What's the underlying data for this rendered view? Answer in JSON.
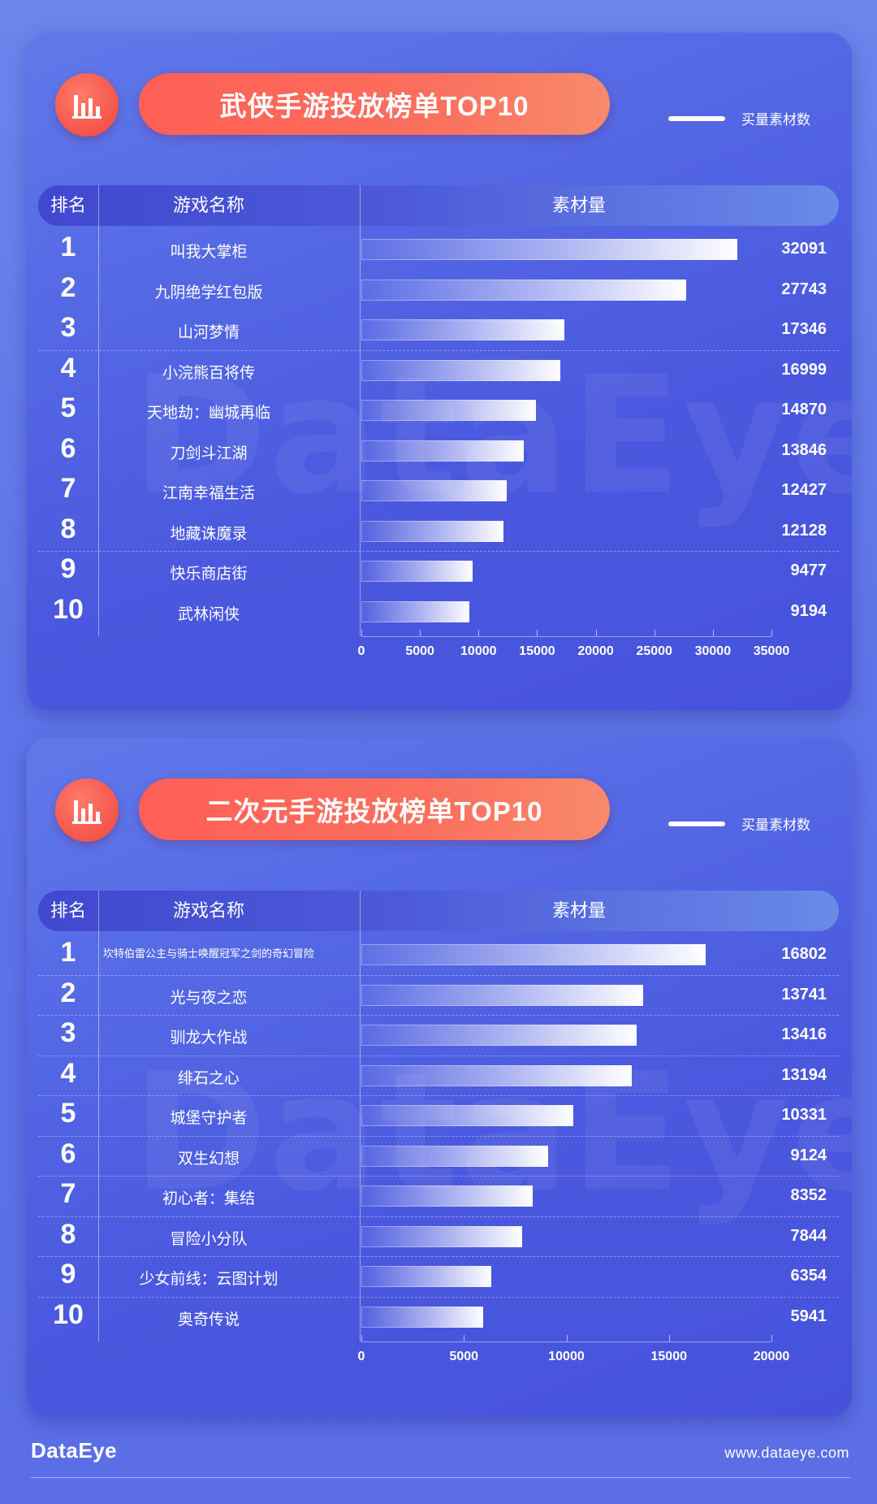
{
  "legend_label": "买量素材数",
  "header": {
    "rank": "排名",
    "name": "游戏名称",
    "value": "素材量"
  },
  "watermark": "DataEye",
  "chart_data": [
    {
      "type": "bar",
      "orientation": "horizontal",
      "title": "武侠手游投放榜单TOP10",
      "ranks": [
        "1",
        "2",
        "3",
        "4",
        "5",
        "6",
        "7",
        "8",
        "9",
        "10"
      ],
      "categories": [
        "叫我大掌柜",
        "九阴绝学红包版",
        "山河梦情",
        "小浣熊百将传",
        "天地劫：幽城再临",
        "刀剑斗江湖",
        "江南幸福生活",
        "地藏诛魔录",
        "快乐商店街",
        "武林闲侠"
      ],
      "values": [
        32091,
        27743,
        17346,
        16999,
        14870,
        13846,
        12427,
        12128,
        9477,
        9194
      ],
      "series": [
        {
          "name": "买量素材数",
          "values": [
            32091,
            27743,
            17346,
            16999,
            14870,
            13846,
            12427,
            12128,
            9477,
            9194
          ]
        }
      ],
      "xlim": [
        0,
        35000
      ],
      "ticks": [
        0,
        5000,
        10000,
        15000,
        20000,
        25000,
        30000,
        35000
      ],
      "tick_labels": [
        "0",
        "5000",
        "10000",
        "15000",
        "20000",
        "25000",
        "30000",
        "35000"
      ]
    },
    {
      "type": "bar",
      "orientation": "horizontal",
      "title": "二次元手游投放榜单TOP10",
      "ranks": [
        "1",
        "2",
        "3",
        "4",
        "5",
        "6",
        "7",
        "8",
        "9",
        "10"
      ],
      "categories": [
        "坎特伯雷公主与骑士唤醒冠军之剑的奇幻冒险",
        "光与夜之恋",
        "驯龙大作战",
        "绯石之心",
        "城堡守护者",
        "双生幻想",
        "初心者：集结",
        "冒险小分队",
        "少女前线：云图计划",
        "奥奇传说"
      ],
      "values": [
        16802,
        13741,
        13416,
        13194,
        10331,
        9124,
        8352,
        7844,
        6354,
        5941
      ],
      "series": [
        {
          "name": "买量素材数",
          "values": [
            16802,
            13741,
            13416,
            13194,
            10331,
            9124,
            8352,
            7844,
            6354,
            5941
          ]
        }
      ],
      "xlim": [
        0,
        20000
      ],
      "ticks": [
        0,
        5000,
        10000,
        15000,
        20000
      ],
      "tick_labels": [
        "0",
        "5000",
        "10000",
        "15000",
        "20000"
      ]
    }
  ],
  "footer": {
    "logo": "DataEye",
    "url": "www.dataeye.com"
  }
}
